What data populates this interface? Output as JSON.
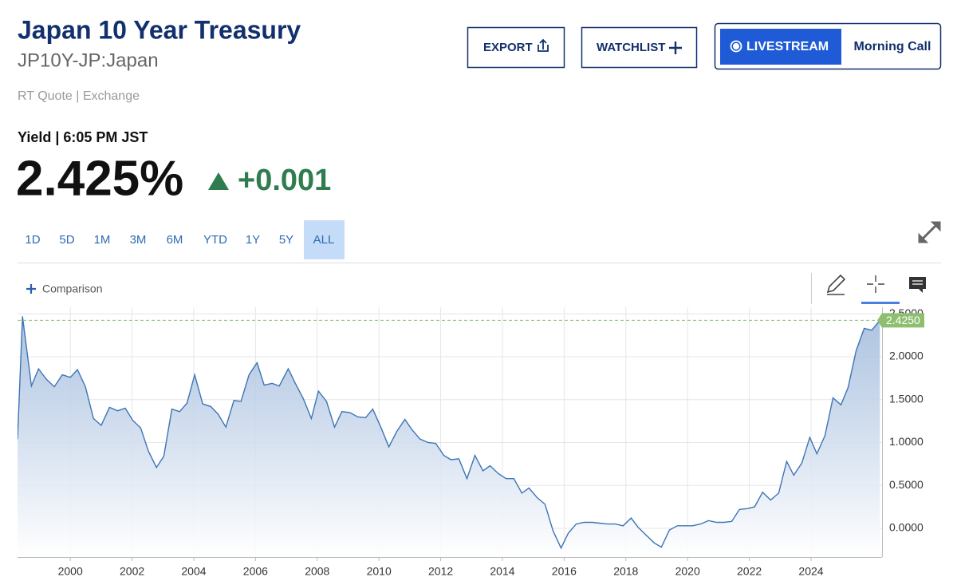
{
  "header": {
    "title": "Japan 10 Year Treasury",
    "symbol": "JP10Y-JP:Japan",
    "source": "RT Quote | Exchange"
  },
  "buttons": {
    "export": "EXPORT",
    "watchlist": "WATCHLIST",
    "livestream": "LIVESTREAM",
    "morning_call": "Morning Call"
  },
  "quote": {
    "label": "Yield | 6:05 PM JST",
    "price": "2.425%",
    "change": "+0.001"
  },
  "ranges": [
    {
      "label": "1D",
      "active": false
    },
    {
      "label": "5D",
      "active": false
    },
    {
      "label": "1M",
      "active": false
    },
    {
      "label": "3M",
      "active": false
    },
    {
      "label": "6M",
      "active": false
    },
    {
      "label": "YTD",
      "active": false
    },
    {
      "label": "1Y",
      "active": false
    },
    {
      "label": "5Y",
      "active": false
    },
    {
      "label": "ALL",
      "active": true
    }
  ],
  "comparison": "Comparison",
  "chart_data": {
    "type": "area",
    "color": "#3d74b5",
    "grid": true,
    "x": [
      1998.29,
      1998.45,
      1998.74,
      1998.97,
      1999.22,
      1999.48,
      1999.74,
      2000.0,
      2000.23,
      2000.49,
      2000.75,
      2001.0,
      2001.27,
      2001.53,
      2001.78,
      2002.02,
      2002.28,
      2002.53,
      2002.79,
      2003.03,
      2003.29,
      2003.54,
      2003.78,
      2004.03,
      2004.29,
      2004.55,
      2004.79,
      2005.04,
      2005.3,
      2005.53,
      2005.79,
      2006.05,
      2006.28,
      2006.54,
      2006.77,
      2007.06,
      2007.29,
      2007.55,
      2007.81,
      2008.04,
      2008.3,
      2008.56,
      2008.8,
      2009.06,
      2009.31,
      2009.57,
      2009.8,
      2010.06,
      2010.32,
      2010.58,
      2010.84,
      2011.07,
      2011.33,
      2011.59,
      2011.84,
      2012.1,
      2012.33,
      2012.59,
      2012.85,
      2013.11,
      2013.37,
      2013.6,
      2013.86,
      2014.12,
      2014.37,
      2014.63,
      2014.86,
      2015.12,
      2015.38,
      2015.64,
      2015.9,
      2016.13,
      2016.39,
      2016.65,
      2016.91,
      2017.14,
      2017.4,
      2017.66,
      2017.91,
      2018.17,
      2018.4,
      2018.66,
      2018.92,
      2019.15,
      2019.41,
      2019.67,
      2019.93,
      2020.16,
      2020.42,
      2020.68,
      2020.94,
      2021.17,
      2021.43,
      2021.68,
      2021.94,
      2022.17,
      2022.43,
      2022.69,
      2022.95,
      2023.21,
      2023.44,
      2023.7,
      2023.96,
      2024.19,
      2024.45,
      2024.71,
      2024.97,
      2025.2,
      2025.46,
      2025.72,
      2025.97,
      2026.23
    ],
    "values": [
      1.04,
      2.47,
      1.66,
      1.86,
      1.74,
      1.65,
      1.79,
      1.76,
      1.85,
      1.65,
      1.28,
      1.2,
      1.41,
      1.37,
      1.4,
      1.26,
      1.17,
      0.9,
      0.71,
      0.84,
      1.39,
      1.36,
      1.46,
      1.79,
      1.45,
      1.42,
      1.33,
      1.18,
      1.49,
      1.48,
      1.79,
      1.93,
      1.67,
      1.69,
      1.66,
      1.86,
      1.69,
      1.51,
      1.28,
      1.6,
      1.48,
      1.18,
      1.36,
      1.35,
      1.3,
      1.29,
      1.39,
      1.18,
      0.95,
      1.13,
      1.27,
      1.15,
      1.04,
      1.0,
      0.99,
      0.85,
      0.8,
      0.81,
      0.58,
      0.85,
      0.67,
      0.73,
      0.64,
      0.58,
      0.58,
      0.41,
      0.47,
      0.36,
      0.28,
      -0.03,
      -0.23,
      -0.06,
      0.05,
      0.07,
      0.07,
      0.06,
      0.05,
      0.05,
      0.03,
      0.12,
      0.01,
      -0.08,
      -0.17,
      -0.22,
      -0.02,
      0.03,
      0.03,
      0.03,
      0.05,
      0.09,
      0.07,
      0.07,
      0.08,
      0.22,
      0.23,
      0.25,
      0.42,
      0.33,
      0.41,
      0.78,
      0.62,
      0.76,
      1.06,
      0.87,
      1.08,
      1.52,
      1.44,
      1.64,
      2.07,
      2.33,
      2.31,
      2.425
    ],
    "xlim": [
      1998.29,
      2026.3
    ],
    "ylim": [
      -0.335,
      2.577
    ],
    "xticks": [
      2000,
      2002,
      2004,
      2006,
      2008,
      2010,
      2012,
      2014,
      2016,
      2018,
      2020,
      2022,
      2024
    ],
    "yticks": [
      {
        "value": 0,
        "label": "0.0000"
      },
      {
        "value": 0.5,
        "label": "0.5000"
      },
      {
        "value": 1,
        "label": "1.0000"
      },
      {
        "value": 1.5,
        "label": "1.5000"
      },
      {
        "value": 2,
        "label": "2.0000"
      },
      {
        "value": 2.5,
        "label": "2.5000"
      }
    ],
    "current": {
      "value": 2.425,
      "label": "2.4250",
      "color": "#8dbf6f"
    }
  }
}
